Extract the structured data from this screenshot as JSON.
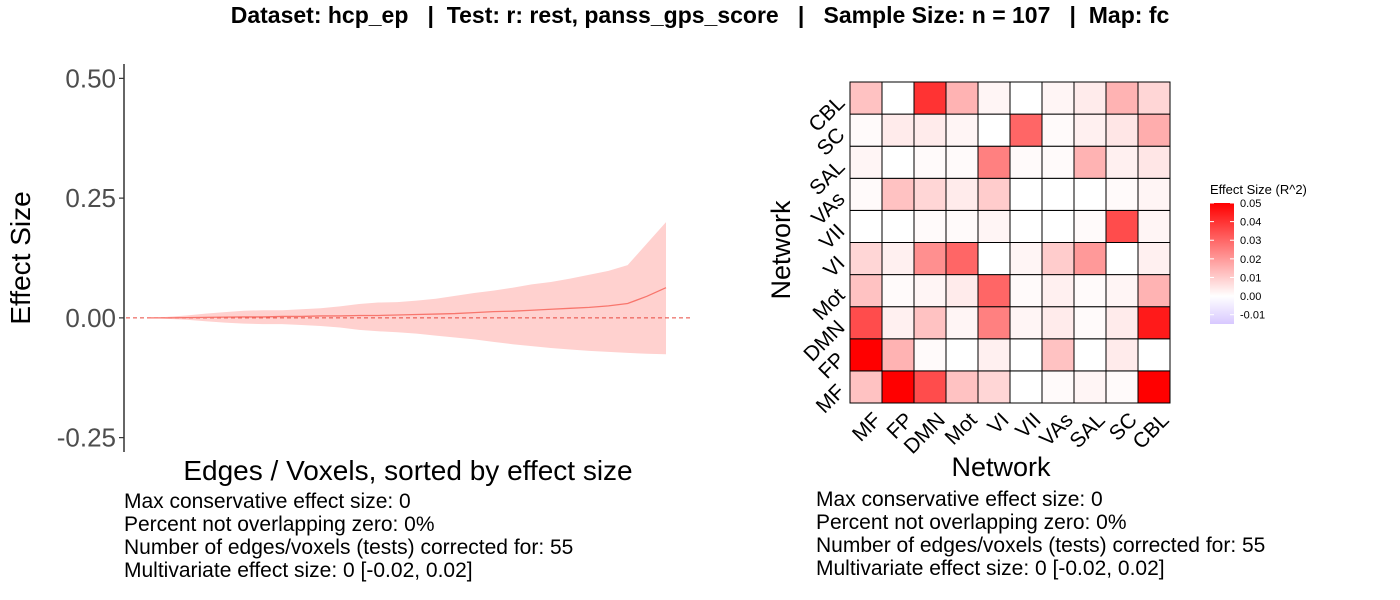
{
  "title": "Dataset: hcp_ep   |  Test: r: rest, panss_gps_score   |   Sample Size: n = 107   |  Map: fc",
  "chart_data": [
    {
      "type": "line",
      "title": "",
      "xlabel": "Edges / Voxels, sorted by effect size",
      "ylabel": "Effect Size",
      "ylim": [
        -0.28,
        0.53
      ],
      "yticks": [
        -0.25,
        0.0,
        0.25,
        0.5
      ],
      "ytick_labels": [
        "-0.25",
        "0.00",
        "0.25",
        "0.50"
      ],
      "reference_line": 0,
      "grid": false,
      "x": [
        1,
        3,
        5,
        7,
        9,
        11,
        13,
        15,
        17,
        19,
        21,
        23,
        25,
        27,
        29,
        31,
        33,
        35,
        37,
        39,
        41,
        43,
        45,
        47,
        49,
        51,
        53,
        55
      ],
      "series": [
        {
          "role": "estimate",
          "color": "#f8766d",
          "values": [
            0.0,
            0.0,
            0.0005,
            0.001,
            0.0015,
            0.002,
            0.002,
            0.003,
            0.003,
            0.004,
            0.004,
            0.005,
            0.005,
            0.006,
            0.007,
            0.008,
            0.009,
            0.011,
            0.013,
            0.014,
            0.016,
            0.018,
            0.02,
            0.022,
            0.025,
            0.03,
            0.045,
            0.063
          ]
        },
        {
          "role": "upper",
          "color": "#ffd1cf",
          "values": [
            0.0,
            0.002,
            0.005,
            0.009,
            0.012,
            0.015,
            0.016,
            0.016,
            0.018,
            0.02,
            0.024,
            0.029,
            0.032,
            0.033,
            0.036,
            0.04,
            0.046,
            0.052,
            0.057,
            0.063,
            0.07,
            0.075,
            0.082,
            0.09,
            0.098,
            0.11,
            0.155,
            0.2
          ]
        },
        {
          "role": "lower",
          "color": "#ffd1cf",
          "values": [
            0.0,
            -0.002,
            -0.004,
            -0.007,
            -0.01,
            -0.012,
            -0.013,
            -0.013,
            -0.015,
            -0.017,
            -0.02,
            -0.025,
            -0.028,
            -0.03,
            -0.033,
            -0.037,
            -0.041,
            -0.045,
            -0.05,
            -0.055,
            -0.059,
            -0.063,
            -0.066,
            -0.069,
            -0.071,
            -0.073,
            -0.075,
            -0.076
          ]
        }
      ]
    },
    {
      "type": "heatmap",
      "title": "",
      "xlabel": "Network",
      "ylabel": "Network",
      "categories": [
        "MF",
        "FP",
        "DMN",
        "Mot",
        "VI",
        "VII",
        "VAs",
        "SAL",
        "SC",
        "CBL"
      ],
      "values_bottom_to_top": [
        [
          0.012,
          0.05,
          0.035,
          0.012,
          0.008,
          0.0,
          0.001,
          0.002,
          0.001,
          0.05
        ],
        [
          0.05,
          0.015,
          0.001,
          0.0,
          0.003,
          0.0,
          0.012,
          0.0,
          0.004,
          0.0
        ],
        [
          0.035,
          0.003,
          0.012,
          0.002,
          0.025,
          0.002,
          0.004,
          0.001,
          0.004,
          0.045
        ],
        [
          0.012,
          0.001,
          0.002,
          0.004,
          0.03,
          0.001,
          0.003,
          0.001,
          0.002,
          0.015
        ],
        [
          0.008,
          0.003,
          0.022,
          0.03,
          0.0,
          0.002,
          0.01,
          0.02,
          0.0,
          0.003
        ],
        [
          0.0,
          0.0,
          0.001,
          0.001,
          0.002,
          0.0,
          0.0,
          0.001,
          0.035,
          0.002
        ],
        [
          0.001,
          0.012,
          0.008,
          0.004,
          0.01,
          0.0,
          0.0,
          0.0,
          0.001,
          0.002
        ],
        [
          0.002,
          0.0,
          0.001,
          0.001,
          0.025,
          0.001,
          0.001,
          0.015,
          0.003,
          0.005
        ],
        [
          0.001,
          0.004,
          0.004,
          0.002,
          0.0,
          0.03,
          0.001,
          0.003,
          0.005,
          0.016
        ],
        [
          0.012,
          0.0,
          0.04,
          0.015,
          0.002,
          0.0,
          0.002,
          0.004,
          0.015,
          0.008
        ]
      ],
      "legend": {
        "title": "Effect Size (R^2)",
        "placement": "right",
        "ticks": [
          "0.05",
          "0.04",
          "0.03",
          "0.02",
          "0.01",
          "0.00",
          "-0.01"
        ],
        "range": [
          -0.015,
          0.05
        ],
        "colors": {
          "low": "#d8c8ff",
          "mid": "#ffffff",
          "high": "#ff0000"
        }
      }
    }
  ],
  "left_notes": [
    "Max conservative effect size: 0",
    "Percent not overlapping zero: 0%",
    "Number of edges/voxels (tests) corrected for: 55",
    "Multivariate effect size: 0 [-0.02, 0.02]"
  ],
  "right_notes": [
    "Max conservative effect size: 0",
    "Percent not overlapping zero: 0%",
    "Number of edges/voxels (tests) corrected for: 55",
    "Multivariate effect size: 0 [-0.02, 0.02]"
  ]
}
